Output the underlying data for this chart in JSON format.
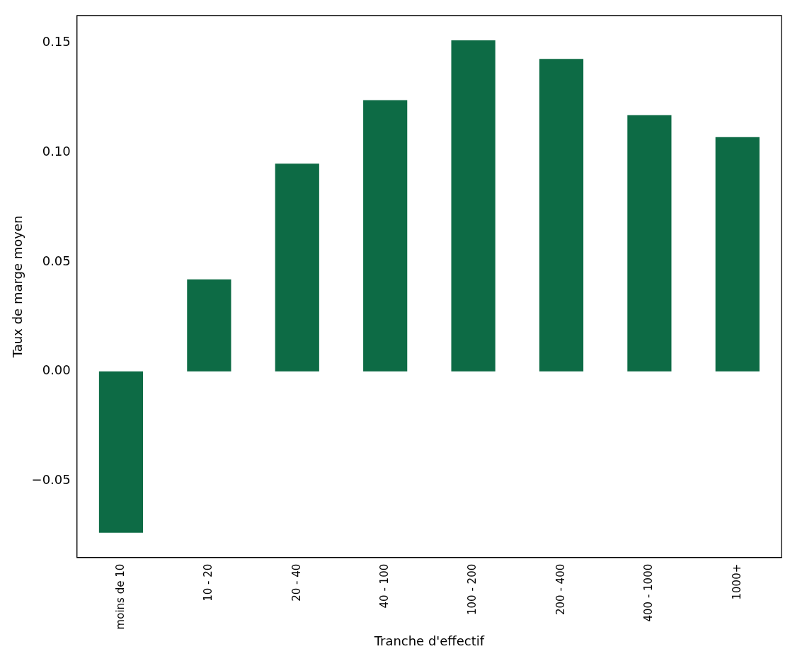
{
  "chart_data": {
    "type": "bar",
    "xlabel": "Tranche d'effectif",
    "ylabel": "Taux de marge moyen",
    "categories": [
      "moins de 10",
      "10 - 20",
      "20 - 40",
      "40 - 100",
      "100 - 200",
      "200 - 400",
      "400 - 1000",
      "1000+"
    ],
    "values": [
      -0.0737,
      0.042,
      0.0949,
      0.1239,
      0.1512,
      0.1427,
      0.117,
      0.107
    ],
    "color": "#0d6b45",
    "ylim": [
      -0.085,
      0.1625
    ],
    "yticks": [
      {
        "value": -0.05,
        "label": "−0.05"
      },
      {
        "value": 0,
        "label": "0.00"
      },
      {
        "value": 0.05,
        "label": "0.05"
      },
      {
        "value": 0.1,
        "label": "0.10"
      },
      {
        "value": 0.15,
        "label": "0.15"
      }
    ],
    "grid": false,
    "legend": false
  }
}
